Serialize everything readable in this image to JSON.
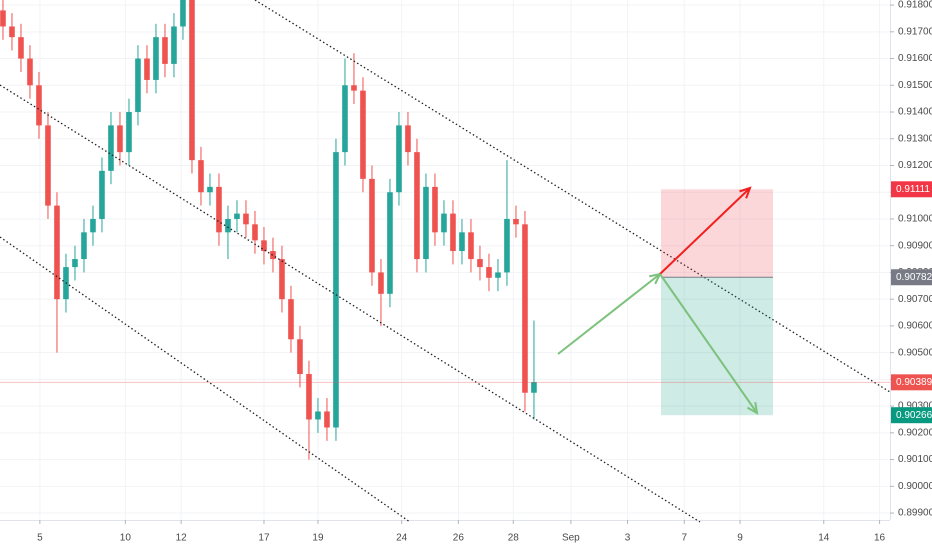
{
  "chart_data": {
    "type": "candlestick",
    "up_color": "#26a69a",
    "down_color": "#ef5350",
    "open": [
      0.9178,
      0.9172,
      0.9168,
      0.916,
      0.915,
      0.9135,
      0.9105,
      0.907,
      0.9082,
      0.9085,
      0.9095,
      0.91,
      0.9118,
      0.9135,
      0.9125,
      0.914,
      0.916,
      0.9152,
      0.9168,
      0.9158,
      0.9172,
      0.9182,
      0.9122,
      0.911,
      0.9112,
      0.9095,
      0.91,
      0.9102,
      0.9098,
      0.9092,
      0.9088,
      0.9085,
      0.907,
      0.9055,
      0.9042,
      0.9025,
      0.9028,
      0.9022,
      0.9125,
      0.915,
      0.9148,
      0.9115,
      0.908,
      0.9072,
      0.911,
      0.9135,
      0.9125,
      0.9085,
      0.9112,
      0.9095,
      0.9102,
      0.9088,
      0.9095,
      0.9085,
      0.9082,
      0.9078,
      0.908,
      0.91,
      0.9098,
      0.9035
    ],
    "high": [
      0.9183,
      0.9177,
      0.9173,
      0.9165,
      0.9155,
      0.914,
      0.911,
      0.9087,
      0.909,
      0.91,
      0.9105,
      0.9123,
      0.914,
      0.914,
      0.9145,
      0.9165,
      0.9165,
      0.9173,
      0.9173,
      0.9177,
      0.919,
      0.9185,
      0.9127,
      0.9117,
      0.9117,
      0.9105,
      0.9107,
      0.9107,
      0.9103,
      0.9097,
      0.9093,
      0.909,
      0.9075,
      0.906,
      0.9047,
      0.9033,
      0.9033,
      0.913,
      0.916,
      0.9162,
      0.9153,
      0.912,
      0.9085,
      0.9115,
      0.914,
      0.914,
      0.913,
      0.9117,
      0.9117,
      0.9107,
      0.9107,
      0.91,
      0.91,
      0.909,
      0.9087,
      0.9085,
      0.9122,
      0.9105,
      0.9103,
      0.9062
    ],
    "low": [
      0.9167,
      0.9163,
      0.9155,
      0.9145,
      0.913,
      0.91,
      0.905,
      0.9065,
      0.9077,
      0.908,
      0.909,
      0.9095,
      0.9113,
      0.912,
      0.912,
      0.9135,
      0.9147,
      0.9147,
      0.9153,
      0.9153,
      0.9167,
      0.9117,
      0.9105,
      0.9105,
      0.909,
      0.9085,
      0.9095,
      0.9093,
      0.9087,
      0.9083,
      0.908,
      0.9065,
      0.905,
      0.9037,
      0.901,
      0.902,
      0.9017,
      0.9017,
      0.912,
      0.9143,
      0.911,
      0.9075,
      0.906,
      0.9067,
      0.9105,
      0.912,
      0.908,
      0.908,
      0.909,
      0.909,
      0.9083,
      0.9083,
      0.908,
      0.9077,
      0.9073,
      0.9073,
      0.9075,
      0.9093,
      0.9028,
      0.9025
    ],
    "close": [
      0.9172,
      0.9168,
      0.916,
      0.915,
      0.9135,
      0.9105,
      0.907,
      0.9082,
      0.9085,
      0.9095,
      0.91,
      0.9118,
      0.9135,
      0.9125,
      0.914,
      0.916,
      0.9152,
      0.9168,
      0.9158,
      0.9172,
      0.9182,
      0.9122,
      0.911,
      0.9112,
      0.9095,
      0.91,
      0.9102,
      0.9098,
      0.9092,
      0.9088,
      0.9085,
      0.907,
      0.9055,
      0.9042,
      0.9025,
      0.9028,
      0.9022,
      0.9125,
      0.915,
      0.9148,
      0.9115,
      0.908,
      0.9072,
      0.911,
      0.9135,
      0.9125,
      0.9085,
      0.9112,
      0.9095,
      0.9102,
      0.9088,
      0.9095,
      0.9085,
      0.9082,
      0.9078,
      0.908,
      0.91,
      0.9098,
      0.9035,
      0.9039
    ],
    "xlim": [
      -0.33,
      98.56
    ],
    "xticks": [
      {
        "value": 4.1,
        "label": "5"
      },
      {
        "value": 13.6,
        "label": "10"
      },
      {
        "value": 19.8,
        "label": "12"
      },
      {
        "value": 29,
        "label": "17"
      },
      {
        "value": 35,
        "label": "19"
      },
      {
        "value": 44.3,
        "label": "24"
      },
      {
        "value": 50.6,
        "label": "26"
      },
      {
        "value": 56.7,
        "label": "28"
      },
      {
        "value": 63.1,
        "label": "Sep"
      },
      {
        "value": 69.4,
        "label": "3"
      },
      {
        "value": 75.7,
        "label": "7"
      },
      {
        "value": 81.9,
        "label": "9"
      },
      {
        "value": 91.2,
        "label": "14"
      },
      {
        "value": 97.4,
        "label": "16"
      }
    ],
    "ylim": [
      0.89874,
      0.91819
    ],
    "yticks": [
      {
        "value": 0.899,
        "label": "0.89900"
      },
      {
        "value": 0.9,
        "label": "0.90000"
      },
      {
        "value": 0.901,
        "label": "0.90100"
      },
      {
        "value": 0.902,
        "label": "0.90200"
      },
      {
        "value": 0.903,
        "label": "0.90300"
      },
      {
        "value": 0.904,
        "label": "0.90400"
      },
      {
        "value": 0.905,
        "label": "0.90500"
      },
      {
        "value": 0.906,
        "label": "0.90600"
      },
      {
        "value": 0.907,
        "label": "0.90700"
      },
      {
        "value": 0.908,
        "label": "0.90800"
      },
      {
        "value": 0.909,
        "label": "0.90900"
      },
      {
        "value": 0.91,
        "label": "0.91000"
      },
      {
        "value": 0.911,
        "label": "0.91100"
      },
      {
        "value": 0.912,
        "label": "0.91200"
      },
      {
        "value": 0.913,
        "label": "0.91300"
      },
      {
        "value": 0.914,
        "label": "0.91400"
      },
      {
        "value": 0.915,
        "label": "0.91500"
      },
      {
        "value": 0.916,
        "label": "0.91600"
      },
      {
        "value": 0.917,
        "label": "0.91700"
      },
      {
        "value": 0.918,
        "label": "0.91800"
      }
    ],
    "price_labels": [
      {
        "value": 0.91111,
        "label": "0.91111",
        "color": "#f23645"
      },
      {
        "value": 0.90782,
        "label": "0.90782",
        "color": "#787b86"
      },
      {
        "value": 0.90389,
        "label": "0.90389",
        "color": "#ef5350"
      },
      {
        "value": 0.90266,
        "label": "0.90266",
        "color": "#089981"
      }
    ]
  }
}
